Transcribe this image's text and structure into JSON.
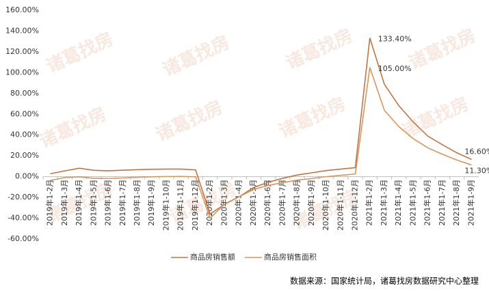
{
  "chart_data": {
    "type": "line",
    "watermark": "诸葛找房",
    "source": "数据来源：国家统计局，诸葛找房数据研究中心整理",
    "categories": [
      "2019年1-2月",
      "2019年1-3月",
      "2019年1-4月",
      "2019年1-5月",
      "2019年1-6月",
      "2019年1-7月",
      "2019年1-8月",
      "2019年1-9月",
      "2019年1-10月",
      "2019年1-11月",
      "2019年1-12月",
      "2020年1-2月",
      "2020年1-3月",
      "2020年1-4月",
      "2020年1-5月",
      "2020年1-6月",
      "2020年1-7月",
      "2020年1-8月",
      "2020年1-9月",
      "2020年1-10月",
      "2020年1-11月",
      "2020年1-12月",
      "2021年1-2月",
      "2021年1-3月",
      "2021年1-4月",
      "2021年1-5月",
      "2021年1-6月",
      "2021年1-7月",
      "2021年1-8月",
      "2021年1-9月"
    ],
    "series": [
      {
        "name": "商品房销售额",
        "color": "#c27344",
        "values": [
          2.8,
          5.6,
          8.1,
          6.1,
          5.6,
          6.2,
          6.7,
          7.1,
          7.3,
          7.3,
          6.5,
          -35.9,
          -26.7,
          -19.3,
          -10.4,
          -5.4,
          -1.6,
          1.6,
          3.7,
          5.9,
          7.3,
          8.7,
          133.4,
          88.8,
          68.2,
          52.4,
          38.9,
          30.7,
          22.9,
          16.6
        ],
        "value_labels": [
          null,
          null,
          null,
          null,
          null,
          null,
          null,
          null,
          null,
          null,
          null,
          null,
          null,
          null,
          null,
          null,
          null,
          null,
          null,
          null,
          null,
          null,
          "133.40%",
          null,
          null,
          null,
          null,
          null,
          null,
          "16.60%"
        ]
      },
      {
        "name": "商品房销售面积",
        "color": "#d8955c",
        "values": [
          -3.6,
          -0.9,
          -0.3,
          -1.6,
          -1.8,
          -1.3,
          -0.6,
          -0.1,
          0.1,
          0.2,
          -0.1,
          -39.9,
          -26.3,
          -19.3,
          -12.3,
          -8.4,
          -5.8,
          -3.3,
          -1.8,
          0,
          1.3,
          2.6,
          105,
          63.8,
          48.1,
          36.4,
          27.7,
          21.5,
          15.9,
          11.3
        ],
        "value_labels": [
          null,
          null,
          null,
          null,
          null,
          null,
          null,
          null,
          null,
          null,
          null,
          null,
          null,
          null,
          null,
          null,
          null,
          null,
          null,
          null,
          null,
          null,
          "105.00%",
          null,
          null,
          null,
          null,
          null,
          null,
          "11.30%"
        ]
      }
    ],
    "ylim": [
      -60,
      160
    ],
    "yticks": [
      {
        "value": -60,
        "label": "-60.00%"
      },
      {
        "value": -40,
        "label": "-40.00%"
      },
      {
        "value": -20,
        "label": "-20.00%"
      },
      {
        "value": 0,
        "label": "0.00%"
      },
      {
        "value": 20,
        "label": "20.00%"
      },
      {
        "value": 40,
        "label": "40.00%"
      },
      {
        "value": 60,
        "label": "60.00%"
      },
      {
        "value": 80,
        "label": "80.00%"
      },
      {
        "value": 100,
        "label": "100.00%"
      },
      {
        "value": 120,
        "label": "120.00%"
      },
      {
        "value": 140,
        "label": "140.00%"
      },
      {
        "value": 160,
        "label": "160.00%"
      }
    ],
    "grid": false
  }
}
